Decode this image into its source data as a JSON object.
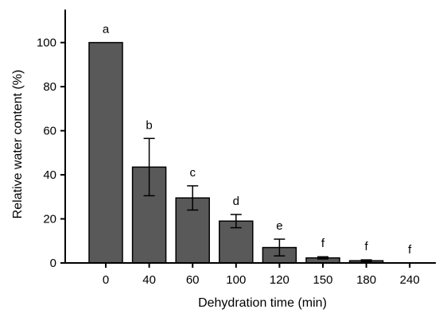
{
  "chart_data": {
    "type": "bar",
    "title": "",
    "xlabel": "Dehydration time (min)",
    "ylabel": "Relative water content (%)",
    "ylim": [
      0,
      115
    ],
    "yticks": [
      0,
      20,
      40,
      60,
      80,
      100
    ],
    "categories": [
      "0",
      "40",
      "60",
      "100",
      "120",
      "150",
      "180",
      "240"
    ],
    "values": [
      100,
      43.5,
      29.5,
      19,
      7,
      2.3,
      1,
      0
    ],
    "errors": [
      0,
      13,
      5.5,
      3,
      3.8,
      0.5,
      0.4,
      0
    ],
    "significance": [
      "a",
      "b",
      "c",
      "d",
      "e",
      "f",
      "f",
      "f"
    ],
    "grid": false,
    "legend": "none",
    "bar_color": "#595959"
  }
}
